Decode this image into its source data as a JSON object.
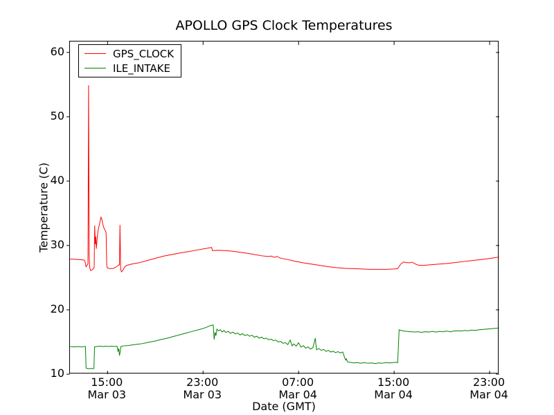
{
  "title": "APOLLO GPS Clock Temperatures",
  "colors": {
    "background": "#ffffff",
    "axes": "#000000",
    "gps_clock_line": "#ff0000",
    "ile_intake_line": "#008000"
  },
  "chart_data": {
    "type": "line",
    "title": "APOLLO GPS Clock Temperatures",
    "xlabel": "Date (GMT)",
    "ylabel": "Temperature (C)",
    "x_unit": "hours since Mar 03 00:00 GMT",
    "xlim": [
      11.85,
      47.81
    ],
    "ylim": [
      10,
      61.7
    ],
    "grid": false,
    "x_ticks": [
      {
        "t": 15,
        "time": "15:00",
        "date": "Mar 03"
      },
      {
        "t": 23,
        "time": "23:00",
        "date": "Mar 03"
      },
      {
        "t": 31,
        "time": "07:00",
        "date": "Mar 04"
      },
      {
        "t": 39,
        "time": "15:00",
        "date": "Mar 04"
      },
      {
        "t": 47,
        "time": "23:00",
        "date": "Mar 04"
      }
    ],
    "y_ticks": [
      10,
      20,
      30,
      40,
      50,
      60
    ],
    "legend": {
      "position": "upper left",
      "entries": [
        {
          "label": "GPS_CLOCK",
          "color": "#ff0000"
        },
        {
          "label": "ILE_INTAKE",
          "color": "#008000"
        }
      ]
    },
    "series": [
      {
        "name": "GPS_CLOCK",
        "color": "#ff0000",
        "points": [
          [
            11.87,
            27.9
          ],
          [
            12.3,
            27.85
          ],
          [
            12.7,
            27.8
          ],
          [
            13.0,
            27.75
          ],
          [
            13.1,
            27.6
          ],
          [
            13.2,
            26.7
          ],
          [
            13.28,
            26.9
          ],
          [
            13.36,
            27.2
          ],
          [
            13.41,
            54.9
          ],
          [
            13.46,
            28.5
          ],
          [
            13.5,
            26.6
          ],
          [
            13.58,
            26.1
          ],
          [
            13.7,
            26.2
          ],
          [
            13.82,
            26.4
          ],
          [
            13.88,
            26.6
          ],
          [
            13.92,
            33.1
          ],
          [
            13.97,
            30.2
          ],
          [
            14.02,
            31.4
          ],
          [
            14.06,
            29.5
          ],
          [
            14.12,
            30.8
          ],
          [
            14.2,
            32.3
          ],
          [
            14.32,
            33.3
          ],
          [
            14.45,
            34.4
          ],
          [
            14.52,
            34.1
          ],
          [
            14.6,
            33.3
          ],
          [
            14.72,
            32.6
          ],
          [
            14.82,
            32.3
          ],
          [
            14.88,
            31.9
          ],
          [
            14.93,
            27.0
          ],
          [
            14.98,
            26.5
          ],
          [
            15.2,
            26.4
          ],
          [
            15.5,
            26.45
          ],
          [
            15.75,
            26.7
          ],
          [
            15.95,
            27.0
          ],
          [
            16.0,
            27.0
          ],
          [
            16.04,
            33.2
          ],
          [
            16.1,
            26.2
          ],
          [
            16.18,
            25.9
          ],
          [
            16.3,
            26.2
          ],
          [
            16.45,
            26.7
          ],
          [
            16.6,
            26.9
          ],
          [
            17.0,
            27.1
          ],
          [
            17.6,
            27.3
          ],
          [
            18.3,
            27.65
          ],
          [
            19.0,
            28.0
          ],
          [
            19.7,
            28.35
          ],
          [
            20.4,
            28.6
          ],
          [
            21.1,
            28.85
          ],
          [
            21.8,
            29.05
          ],
          [
            22.5,
            29.3
          ],
          [
            23.1,
            29.5
          ],
          [
            23.6,
            29.65
          ],
          [
            23.72,
            29.7
          ],
          [
            23.78,
            29.2
          ],
          [
            24.3,
            29.25
          ],
          [
            24.9,
            29.2
          ],
          [
            25.5,
            29.1
          ],
          [
            26.1,
            28.95
          ],
          [
            26.7,
            28.8
          ],
          [
            27.3,
            28.6
          ],
          [
            27.9,
            28.4
          ],
          [
            28.4,
            28.3
          ],
          [
            28.75,
            28.35
          ],
          [
            28.95,
            28.15
          ],
          [
            29.2,
            28.3
          ],
          [
            29.45,
            28.05
          ],
          [
            30.0,
            27.85
          ],
          [
            30.7,
            27.55
          ],
          [
            31.4,
            27.3
          ],
          [
            32.1,
            27.1
          ],
          [
            32.8,
            26.9
          ],
          [
            33.5,
            26.7
          ],
          [
            34.2,
            26.55
          ],
          [
            34.9,
            26.45
          ],
          [
            35.6,
            26.4
          ],
          [
            36.3,
            26.35
          ],
          [
            37.0,
            26.3
          ],
          [
            37.7,
            26.3
          ],
          [
            38.4,
            26.3
          ],
          [
            39.0,
            26.35
          ],
          [
            39.3,
            26.4
          ],
          [
            39.55,
            27.1
          ],
          [
            39.8,
            27.45
          ],
          [
            40.0,
            27.35
          ],
          [
            40.25,
            27.3
          ],
          [
            40.5,
            27.4
          ],
          [
            40.75,
            27.15
          ],
          [
            41.0,
            26.95
          ],
          [
            41.4,
            26.9
          ],
          [
            42.0,
            27.0
          ],
          [
            42.7,
            27.1
          ],
          [
            43.4,
            27.2
          ],
          [
            44.1,
            27.35
          ],
          [
            44.8,
            27.5
          ],
          [
            45.5,
            27.65
          ],
          [
            46.2,
            27.8
          ],
          [
            46.9,
            27.95
          ],
          [
            47.4,
            28.1
          ],
          [
            47.8,
            28.2
          ]
        ]
      },
      {
        "name": "ILE_INTAKE",
        "color": "#008000",
        "points": [
          [
            11.87,
            14.3
          ],
          [
            12.2,
            14.25
          ],
          [
            12.5,
            14.3
          ],
          [
            12.8,
            14.25
          ],
          [
            13.05,
            14.3
          ],
          [
            13.15,
            14.3
          ],
          [
            13.2,
            10.95
          ],
          [
            13.4,
            10.85
          ],
          [
            13.6,
            10.9
          ],
          [
            13.78,
            10.85
          ],
          [
            13.86,
            10.9
          ],
          [
            13.91,
            14.25
          ],
          [
            14.1,
            14.3
          ],
          [
            14.35,
            14.35
          ],
          [
            14.6,
            14.3
          ],
          [
            14.85,
            14.35
          ],
          [
            15.1,
            14.3
          ],
          [
            15.35,
            14.35
          ],
          [
            15.6,
            14.3
          ],
          [
            15.8,
            14.35
          ],
          [
            15.88,
            13.5
          ],
          [
            15.94,
            14.0
          ],
          [
            16.0,
            12.9
          ],
          [
            16.07,
            13.6
          ],
          [
            16.12,
            14.3
          ],
          [
            16.35,
            14.4
          ],
          [
            16.7,
            14.45
          ],
          [
            17.1,
            14.55
          ],
          [
            17.5,
            14.65
          ],
          [
            17.9,
            14.75
          ],
          [
            18.3,
            14.9
          ],
          [
            18.7,
            15.05
          ],
          [
            19.1,
            15.2
          ],
          [
            19.5,
            15.4
          ],
          [
            19.9,
            15.55
          ],
          [
            20.3,
            15.75
          ],
          [
            20.7,
            15.95
          ],
          [
            21.1,
            16.15
          ],
          [
            21.5,
            16.35
          ],
          [
            21.9,
            16.55
          ],
          [
            22.3,
            16.75
          ],
          [
            22.7,
            16.95
          ],
          [
            23.0,
            17.1
          ],
          [
            23.3,
            17.3
          ],
          [
            23.55,
            17.5
          ],
          [
            23.7,
            17.6
          ],
          [
            23.85,
            17.65
          ],
          [
            23.93,
            15.4
          ],
          [
            24.0,
            16.5
          ],
          [
            24.08,
            16.0
          ],
          [
            24.16,
            17.0
          ],
          [
            24.3,
            16.75
          ],
          [
            24.45,
            16.9
          ],
          [
            24.6,
            16.55
          ],
          [
            24.75,
            16.8
          ],
          [
            24.9,
            16.5
          ],
          [
            25.1,
            16.65
          ],
          [
            25.3,
            16.35
          ],
          [
            25.5,
            16.55
          ],
          [
            25.7,
            16.25
          ],
          [
            25.9,
            16.4
          ],
          [
            26.1,
            16.1
          ],
          [
            26.3,
            16.3
          ],
          [
            26.5,
            16.0
          ],
          [
            26.7,
            16.15
          ],
          [
            26.9,
            15.9
          ],
          [
            27.1,
            16.05
          ],
          [
            27.3,
            15.75
          ],
          [
            27.5,
            15.9
          ],
          [
            27.7,
            15.6
          ],
          [
            27.9,
            15.75
          ],
          [
            28.1,
            15.5
          ],
          [
            28.3,
            15.6
          ],
          [
            28.5,
            15.35
          ],
          [
            28.7,
            15.45
          ],
          [
            28.9,
            15.2
          ],
          [
            29.1,
            15.3
          ],
          [
            29.3,
            15.0
          ],
          [
            29.5,
            15.1
          ],
          [
            29.7,
            14.8
          ],
          [
            29.9,
            14.9
          ],
          [
            30.1,
            14.6
          ],
          [
            30.3,
            15.3
          ],
          [
            30.45,
            14.4
          ],
          [
            30.6,
            14.7
          ],
          [
            30.8,
            14.35
          ],
          [
            31.0,
            14.9
          ],
          [
            31.2,
            14.2
          ],
          [
            31.4,
            14.45
          ],
          [
            31.6,
            14.05
          ],
          [
            31.8,
            14.25
          ],
          [
            32.0,
            13.9
          ],
          [
            32.2,
            14.15
          ],
          [
            32.4,
            15.6
          ],
          [
            32.5,
            13.8
          ],
          [
            32.7,
            14.0
          ],
          [
            32.9,
            13.7
          ],
          [
            33.1,
            13.85
          ],
          [
            33.3,
            13.55
          ],
          [
            33.5,
            13.7
          ],
          [
            33.7,
            13.45
          ],
          [
            33.9,
            13.55
          ],
          [
            34.1,
            13.35
          ],
          [
            34.3,
            13.5
          ],
          [
            34.5,
            13.3
          ],
          [
            34.7,
            13.45
          ],
          [
            34.87,
            12.5
          ],
          [
            34.95,
            12.2
          ],
          [
            35.0,
            12.4
          ],
          [
            35.1,
            11.9
          ],
          [
            35.3,
            11.85
          ],
          [
            35.6,
            11.75
          ],
          [
            35.9,
            11.8
          ],
          [
            36.2,
            11.7
          ],
          [
            36.5,
            11.8
          ],
          [
            36.8,
            11.7
          ],
          [
            37.1,
            11.75
          ],
          [
            37.4,
            11.65
          ],
          [
            37.7,
            11.75
          ],
          [
            38.0,
            11.7
          ],
          [
            38.3,
            11.8
          ],
          [
            38.6,
            11.75
          ],
          [
            38.9,
            11.8
          ],
          [
            39.1,
            11.85
          ],
          [
            39.3,
            11.8
          ],
          [
            39.42,
            16.9
          ],
          [
            39.6,
            16.8
          ],
          [
            39.8,
            16.7
          ],
          [
            40.1,
            16.65
          ],
          [
            40.4,
            16.6
          ],
          [
            40.7,
            16.55
          ],
          [
            41.0,
            16.6
          ],
          [
            41.3,
            16.5
          ],
          [
            41.6,
            16.6
          ],
          [
            41.9,
            16.55
          ],
          [
            42.2,
            16.65
          ],
          [
            42.5,
            16.55
          ],
          [
            42.8,
            16.65
          ],
          [
            43.1,
            16.6
          ],
          [
            43.4,
            16.7
          ],
          [
            43.7,
            16.6
          ],
          [
            44.0,
            16.7
          ],
          [
            44.3,
            16.75
          ],
          [
            44.6,
            16.7
          ],
          [
            44.9,
            16.8
          ],
          [
            45.2,
            16.75
          ],
          [
            45.5,
            16.85
          ],
          [
            45.8,
            16.8
          ],
          [
            46.1,
            16.9
          ],
          [
            46.4,
            16.95
          ],
          [
            46.7,
            17.0
          ],
          [
            47.0,
            17.05
          ],
          [
            47.3,
            17.1
          ],
          [
            47.6,
            17.15
          ],
          [
            47.8,
            17.2
          ]
        ]
      }
    ]
  }
}
